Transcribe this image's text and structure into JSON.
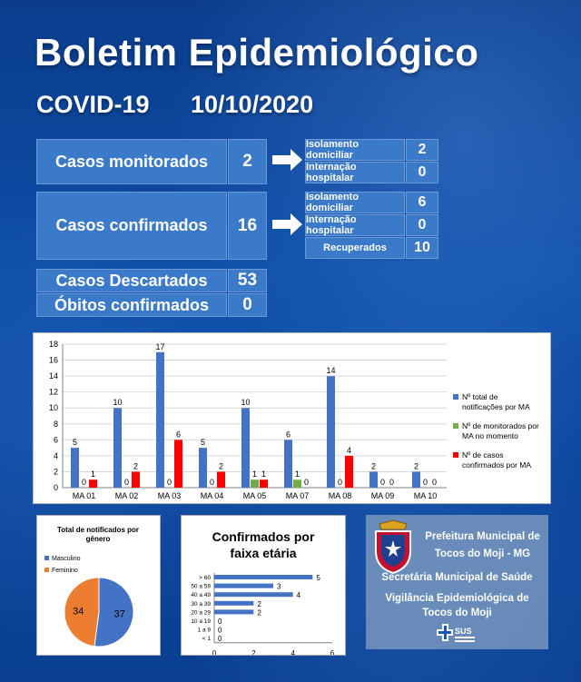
{
  "header": {
    "title": "Boletim Epidemiológico",
    "covid": "COVID-19",
    "date": "10/10/2020"
  },
  "monitorados": {
    "label": "Casos monitorados",
    "value": "2",
    "sub": [
      {
        "label": "Isolamento domiciliar",
        "value": "2"
      },
      {
        "label": "Internação hospitalar",
        "value": "0"
      }
    ]
  },
  "confirmados": {
    "label": "Casos confirmados",
    "value": "16",
    "sub": [
      {
        "label": "Isolamento domiciliar",
        "value": "6"
      },
      {
        "label": "Internação hospitalar",
        "value": "0"
      },
      {
        "label": "Recuperados",
        "value": "10"
      }
    ]
  },
  "descartados": {
    "label": "Casos Descartados",
    "value": "53"
  },
  "obitos": {
    "label": "Óbitos confirmados",
    "value": "0"
  },
  "colors": {
    "blue": "#4472c4",
    "green": "#70ad47",
    "red": "#ff0000",
    "orange": "#ed7d31"
  },
  "chart_data": [
    {
      "type": "bar",
      "categories": [
        "MA 01",
        "MA 02",
        "MA 03",
        "MA 04",
        "MA 05",
        "MA 07",
        "MA 08",
        "MA 09",
        "MA 10"
      ],
      "ylim": [
        0,
        18
      ],
      "yticks": [
        0,
        2,
        4,
        6,
        8,
        10,
        12,
        14,
        16,
        18
      ],
      "series": [
        {
          "name": "Nº total de notificações por MA",
          "values": [
            5,
            10,
            17,
            5,
            10,
            6,
            14,
            2,
            2
          ]
        },
        {
          "name": "Nº de monitorados por MA no momento",
          "values": [
            0,
            0,
            0,
            0,
            1,
            1,
            0,
            0,
            0
          ]
        },
        {
          "name": "Nº de casos confirmados por MA",
          "values": [
            1,
            2,
            6,
            2,
            1,
            0,
            4,
            0,
            0
          ]
        }
      ]
    },
    {
      "type": "pie",
      "title": "Total de notificados por gênero",
      "slices": [
        {
          "name": "Masculino",
          "value": 37
        },
        {
          "name": "Feminino",
          "value": 34
        }
      ]
    },
    {
      "type": "bar",
      "orientation": "horizontal",
      "title": "Confirmados por faixa etária",
      "categories": [
        "> 60",
        "50 a 59",
        "40 a 49",
        "30 a 39",
        "20 a 29",
        "10 a 19",
        "1 a 9",
        "< 1"
      ],
      "values": [
        5,
        3,
        4,
        2,
        2,
        0,
        0,
        0
      ],
      "xlim": [
        0,
        6
      ],
      "xticks": [
        0,
        2,
        4,
        6
      ]
    }
  ],
  "prefeitura": {
    "line1": "Prefeitura Municipal de",
    "line2": "Tocos do Moji - MG",
    "line3": "Secretária Municipal de Saúde",
    "line4": "Vigilância Epidemiológica de",
    "line5": "Tocos do Moji",
    "sus": "SUS"
  }
}
